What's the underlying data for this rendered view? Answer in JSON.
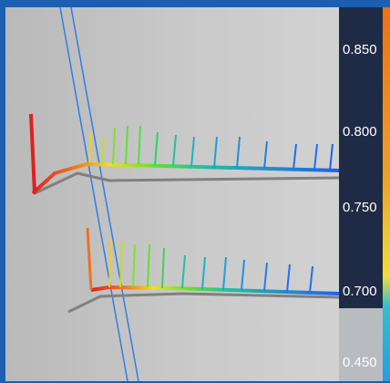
{
  "colorbar": {
    "labels": [
      "0.850",
      "0.800",
      "0.750",
      "0.700",
      "0.450"
    ]
  }
}
